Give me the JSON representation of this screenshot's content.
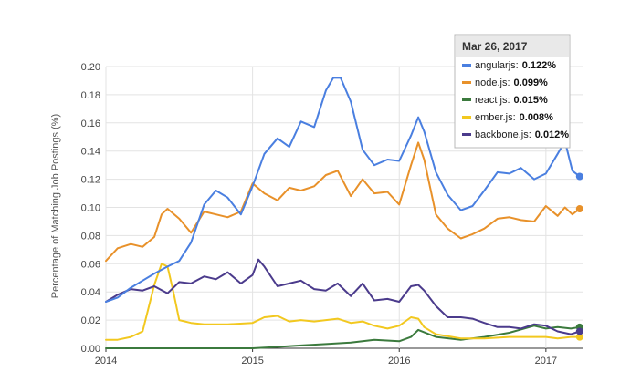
{
  "chart_data": {
    "type": "line",
    "title": "",
    "xlabel": "",
    "ylabel": "Percentage of Matching Job Postings (%)",
    "xlim": [
      2014.0,
      2017.25
    ],
    "ylim": [
      0,
      0.2
    ],
    "x_ticks": [
      "2014",
      "2015",
      "2016",
      "2017"
    ],
    "y_ticks": [
      "0.00",
      "0.02",
      "0.04",
      "0.06",
      "0.08",
      "0.10",
      "0.12",
      "0.14",
      "0.16",
      "0.18",
      "0.20"
    ],
    "grid": true,
    "tooltip": {
      "date": "Mar 26, 2017",
      "entries": [
        {
          "name": "angularjs",
          "value": "0.122%"
        },
        {
          "name": "node.js",
          "value": "0.099%"
        },
        {
          "name": "react js",
          "value": "0.015%"
        },
        {
          "name": "ember.js",
          "value": "0.008%"
        },
        {
          "name": "backbone.js",
          "value": "0.012%"
        }
      ]
    },
    "series": [
      {
        "name": "angularjs",
        "color": "#4a7fe0",
        "x": [
          2014.0,
          2014.08,
          2014.17,
          2014.25,
          2014.33,
          2014.42,
          2014.5,
          2014.58,
          2014.67,
          2014.75,
          2014.83,
          2014.92,
          2015.0,
          2015.08,
          2015.17,
          2015.25,
          2015.33,
          2015.42,
          2015.5,
          2015.55,
          2015.6,
          2015.67,
          2015.75,
          2015.83,
          2015.92,
          2016.0,
          2016.08,
          2016.13,
          2016.17,
          2016.25,
          2016.33,
          2016.42,
          2016.5,
          2016.58,
          2016.67,
          2016.75,
          2016.83,
          2016.92,
          2017.0,
          2017.08,
          2017.13,
          2017.18,
          2017.23
        ],
        "y": [
          0.033,
          0.036,
          0.043,
          0.048,
          0.053,
          0.058,
          0.062,
          0.075,
          0.102,
          0.112,
          0.107,
          0.095,
          0.115,
          0.138,
          0.149,
          0.143,
          0.161,
          0.157,
          0.183,
          0.192,
          0.192,
          0.175,
          0.141,
          0.13,
          0.134,
          0.133,
          0.151,
          0.164,
          0.154,
          0.125,
          0.109,
          0.098,
          0.101,
          0.112,
          0.125,
          0.124,
          0.128,
          0.12,
          0.124,
          0.138,
          0.147,
          0.126,
          0.122
        ]
      },
      {
        "name": "node.js",
        "color": "#e8912a",
        "x": [
          2014.0,
          2014.08,
          2014.17,
          2014.25,
          2014.33,
          2014.38,
          2014.42,
          2014.5,
          2014.58,
          2014.67,
          2014.75,
          2014.83,
          2014.92,
          2015.0,
          2015.08,
          2015.17,
          2015.25,
          2015.33,
          2015.42,
          2015.5,
          2015.58,
          2015.67,
          2015.75,
          2015.83,
          2015.92,
          2016.0,
          2016.08,
          2016.13,
          2016.17,
          2016.25,
          2016.33,
          2016.42,
          2016.5,
          2016.58,
          2016.67,
          2016.75,
          2016.83,
          2016.92,
          2017.0,
          2017.08,
          2017.13,
          2017.18,
          2017.23
        ],
        "y": [
          0.062,
          0.071,
          0.074,
          0.072,
          0.079,
          0.095,
          0.099,
          0.092,
          0.082,
          0.097,
          0.095,
          0.093,
          0.097,
          0.117,
          0.11,
          0.105,
          0.114,
          0.112,
          0.115,
          0.123,
          0.126,
          0.108,
          0.12,
          0.11,
          0.111,
          0.102,
          0.13,
          0.146,
          0.134,
          0.095,
          0.085,
          0.078,
          0.081,
          0.085,
          0.092,
          0.093,
          0.091,
          0.09,
          0.101,
          0.094,
          0.1,
          0.095,
          0.099
        ]
      },
      {
        "name": "react js",
        "color": "#3b7a3d",
        "x": [
          2014.0,
          2014.5,
          2015.0,
          2015.17,
          2015.33,
          2015.5,
          2015.67,
          2015.83,
          2016.0,
          2016.08,
          2016.13,
          2016.25,
          2016.42,
          2016.58,
          2016.75,
          2016.92,
          2017.0,
          2017.08,
          2017.17,
          2017.23
        ],
        "y": [
          0.0,
          0.0,
          0.0,
          0.001,
          0.002,
          0.003,
          0.004,
          0.006,
          0.005,
          0.008,
          0.013,
          0.008,
          0.006,
          0.008,
          0.011,
          0.016,
          0.014,
          0.015,
          0.014,
          0.015
        ]
      },
      {
        "name": "ember.js",
        "color": "#f2c81f",
        "x": [
          2014.0,
          2014.08,
          2014.17,
          2014.25,
          2014.33,
          2014.38,
          2014.42,
          2014.46,
          2014.5,
          2014.58,
          2014.67,
          2014.83,
          2015.0,
          2015.08,
          2015.17,
          2015.25,
          2015.33,
          2015.42,
          2015.5,
          2015.58,
          2015.67,
          2015.75,
          2015.83,
          2015.92,
          2016.0,
          2016.08,
          2016.13,
          2016.17,
          2016.25,
          2016.42,
          2016.58,
          2016.75,
          2016.92,
          2017.0,
          2017.08,
          2017.17,
          2017.23
        ],
        "y": [
          0.006,
          0.006,
          0.008,
          0.012,
          0.045,
          0.06,
          0.058,
          0.04,
          0.02,
          0.018,
          0.017,
          0.017,
          0.018,
          0.022,
          0.023,
          0.019,
          0.02,
          0.019,
          0.02,
          0.021,
          0.018,
          0.019,
          0.016,
          0.014,
          0.016,
          0.022,
          0.021,
          0.015,
          0.01,
          0.007,
          0.007,
          0.008,
          0.008,
          0.008,
          0.007,
          0.008,
          0.008
        ]
      },
      {
        "name": "backbone.js",
        "color": "#4b3b8c",
        "x": [
          2014.0,
          2014.08,
          2014.17,
          2014.25,
          2014.33,
          2014.42,
          2014.5,
          2014.58,
          2014.67,
          2014.75,
          2014.83,
          2014.92,
          2015.0,
          2015.04,
          2015.08,
          2015.17,
          2015.25,
          2015.33,
          2015.42,
          2015.5,
          2015.58,
          2015.67,
          2015.75,
          2015.83,
          2015.92,
          2016.0,
          2016.08,
          2016.13,
          2016.17,
          2016.25,
          2016.33,
          2016.42,
          2016.5,
          2016.58,
          2016.67,
          2016.75,
          2016.83,
          2016.92,
          2017.0,
          2017.08,
          2017.17,
          2017.23
        ],
        "y": [
          0.033,
          0.038,
          0.042,
          0.041,
          0.044,
          0.039,
          0.047,
          0.046,
          0.051,
          0.049,
          0.054,
          0.046,
          0.052,
          0.063,
          0.058,
          0.044,
          0.046,
          0.048,
          0.042,
          0.041,
          0.046,
          0.037,
          0.046,
          0.034,
          0.035,
          0.033,
          0.044,
          0.045,
          0.041,
          0.03,
          0.022,
          0.022,
          0.021,
          0.018,
          0.015,
          0.015,
          0.014,
          0.017,
          0.016,
          0.012,
          0.01,
          0.012
        ]
      }
    ]
  }
}
